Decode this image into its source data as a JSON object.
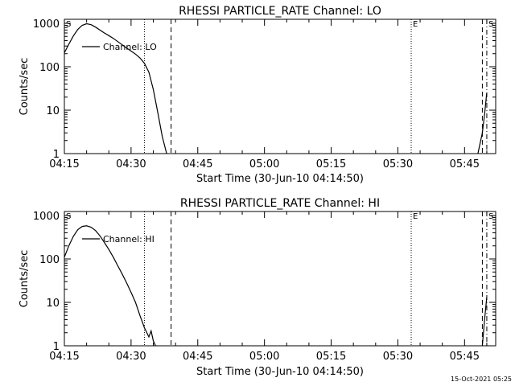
{
  "footer_timestamp": "15-Oct-2021 05:25",
  "chart_data": [
    {
      "type": "line",
      "title": "RHESSI PARTICLE_RATE Channel: LO",
      "xlabel": "Start Time (30-Jun-10 04:14:50)",
      "ylabel": "Counts/sec",
      "yscale": "log",
      "xlim": [
        "04:15",
        "05:52"
      ],
      "ylim": [
        1,
        1000
      ],
      "x_ticks": [
        "04:15",
        "04:30",
        "04:45",
        "05:00",
        "05:15",
        "05:30",
        "05:45"
      ],
      "y_ticks": [
        "1",
        "10",
        "100",
        "1000"
      ],
      "legend": "Channel: LO",
      "legend_position": "top-left",
      "markers": [
        {
          "time": "04:33",
          "style": "dotted"
        },
        {
          "time": "04:39",
          "style": "dashed"
        },
        {
          "time": "05:33",
          "style": "dotted",
          "label": "E"
        },
        {
          "time": "05:49",
          "style": "dashed"
        },
        {
          "time": "05:50",
          "style": "dashdot",
          "label": "S"
        }
      ],
      "corner_label": "S",
      "series": [
        {
          "name": "Channel: LO",
          "segments": [
            [
              [
                "04:15",
                210
              ],
              [
                "04:16",
                330
              ],
              [
                "04:17",
                510
              ],
              [
                "04:18",
                720
              ],
              [
                "04:19",
                900
              ],
              [
                "04:20",
                980
              ],
              [
                "04:21",
                930
              ],
              [
                "04:22",
                820
              ],
              [
                "04:23",
                700
              ],
              [
                "04:24",
                600
              ],
              [
                "04:25",
                520
              ],
              [
                "04:26",
                450
              ],
              [
                "04:27",
                380
              ],
              [
                "04:28",
                320
              ],
              [
                "04:29",
                270
              ],
              [
                "04:30",
                230
              ],
              [
                "04:31",
                195
              ],
              [
                "04:32",
                160
              ],
              [
                "04:33",
                120
              ],
              [
                "04:34",
                75
              ],
              [
                "04:35",
                30
              ],
              [
                "04:36",
                9
              ],
              [
                "04:37",
                2.5
              ],
              [
                "04:38",
                1.0
              ]
            ],
            [
              [
                "05:48",
                1.0
              ],
              [
                "05:49",
                3
              ],
              [
                "05:49.5",
                8
              ],
              [
                "05:50",
                25
              ]
            ]
          ]
        }
      ]
    },
    {
      "type": "line",
      "title": "RHESSI PARTICLE_RATE Channel: HI",
      "xlabel": "Start Time (30-Jun-10 04:14:50)",
      "ylabel": "Counts/sec",
      "yscale": "log",
      "xlim": [
        "04:15",
        "05:52"
      ],
      "ylim": [
        1,
        1000
      ],
      "x_ticks": [
        "04:15",
        "04:30",
        "04:45",
        "05:00",
        "05:15",
        "05:30",
        "05:45"
      ],
      "y_ticks": [
        "1",
        "10",
        "100",
        "1000"
      ],
      "legend": "Channel: HI",
      "legend_position": "top-left",
      "markers": [
        {
          "time": "04:33",
          "style": "dotted"
        },
        {
          "time": "04:39",
          "style": "dashed"
        },
        {
          "time": "05:33",
          "style": "dotted",
          "label": "E"
        },
        {
          "time": "05:49",
          "style": "dashed"
        },
        {
          "time": "05:50",
          "style": "dashdot",
          "label": "S"
        }
      ],
      "corner_label": "S",
      "series": [
        {
          "name": "Channel: HI",
          "segments": [
            [
              [
                "04:15",
                110
              ],
              [
                "04:16",
                200
              ],
              [
                "04:17",
                330
              ],
              [
                "04:18",
                470
              ],
              [
                "04:19",
                560
              ],
              [
                "04:20",
                580
              ],
              [
                "04:21",
                540
              ],
              [
                "04:22",
                450
              ],
              [
                "04:23",
                340
              ],
              [
                "04:24",
                240
              ],
              [
                "04:25",
                165
              ],
              [
                "04:26",
                110
              ],
              [
                "04:27",
                70
              ],
              [
                "04:28",
                45
              ],
              [
                "04:29",
                28
              ],
              [
                "04:30",
                17
              ],
              [
                "04:31",
                10
              ],
              [
                "04:32",
                5
              ],
              [
                "04:33",
                2.6
              ],
              [
                "04:34",
                1.6
              ],
              [
                "04:34.5",
                2.2
              ],
              [
                "04:35",
                1.3
              ],
              [
                "04:35.5",
                1.0
              ]
            ],
            [
              [
                "05:49",
                1.0
              ],
              [
                "05:49.5",
                4
              ],
              [
                "05:50",
                13
              ]
            ]
          ]
        }
      ]
    }
  ]
}
